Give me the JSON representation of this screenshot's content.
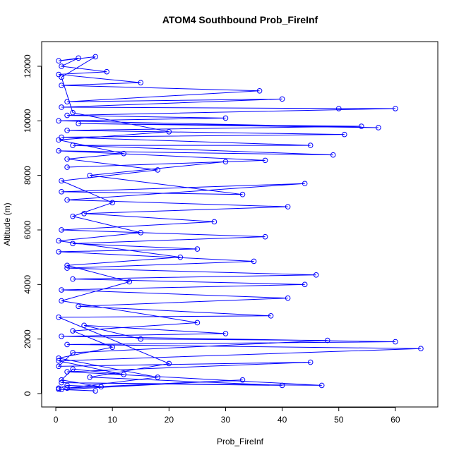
{
  "chart_data": {
    "type": "line",
    "title": "ATOM4 Southbound Prob_FireInf",
    "x_label": "Prob_FireInf",
    "y_label": "Altitude (m)",
    "markers": true,
    "color": "#0000ff",
    "xlim": [
      -2.5,
      67.5
    ],
    "ylim": [
      -491,
      12904
    ],
    "xticks": [
      0,
      10,
      20,
      30,
      40,
      50,
      60
    ],
    "yticks": [
      0,
      2000,
      4000,
      6000,
      8000,
      10000,
      12000
    ],
    "x": [
      0.5,
      2,
      8,
      1,
      3,
      12,
      0.5,
      64.5,
      2,
      60,
      1,
      30,
      5,
      15,
      48,
      3,
      0.5,
      45,
      2,
      47,
      1,
      40,
      6,
      20,
      0.5,
      38,
      4,
      41,
      1,
      44,
      3,
      46,
      2,
      35,
      0.5,
      25,
      3,
      37,
      1,
      28,
      5,
      41,
      2,
      44,
      1,
      33,
      6,
      30,
      2,
      37,
      0.5,
      49,
      3,
      45,
      1,
      51,
      2,
      54,
      4,
      57,
      0.5,
      30,
      2,
      60,
      50,
      1,
      40,
      2,
      36,
      1,
      15,
      0.5,
      9,
      1,
      4,
      0.5,
      7,
      1,
      3,
      20,
      0.5,
      12,
      2,
      18,
      1,
      10,
      3,
      15,
      0.5,
      22,
      2,
      13,
      1,
      25,
      3,
      10,
      0.5,
      18,
      2,
      33,
      1,
      7,
      0.5
    ],
    "values": [
      200,
      300,
      250,
      500,
      900,
      700,
      1200,
      1650,
      1800,
      1900,
      2100,
      2200,
      2500,
      2000,
      1950,
      1500,
      1000,
      1150,
      800,
      300,
      400,
      300,
      600,
      1100,
      2800,
      2850,
      3200,
      3500,
      3800,
      4000,
      4200,
      4350,
      4600,
      4850,
      5200,
      5300,
      5500,
      5750,
      6000,
      6300,
      6600,
      6850,
      7100,
      7700,
      7400,
      7300,
      8000,
      8500,
      8300,
      8550,
      8900,
      8750,
      9100,
      9100,
      9400,
      9500,
      9650,
      9800,
      9900,
      9750,
      10000,
      10100,
      10200,
      10450,
      10450,
      10500,
      10800,
      10700,
      11100,
      11300,
      11400,
      11700,
      11800,
      12000,
      12300,
      12200,
      12350,
      11600,
      10300,
      9600,
      9300,
      8800,
      8600,
      8200,
      7800,
      7000,
      6500,
      5900,
      5600,
      5000,
      4700,
      4100,
      3400,
      2600,
      2300,
      1700,
      1300,
      600,
      200,
      500,
      150,
      100,
      160
    ]
  }
}
